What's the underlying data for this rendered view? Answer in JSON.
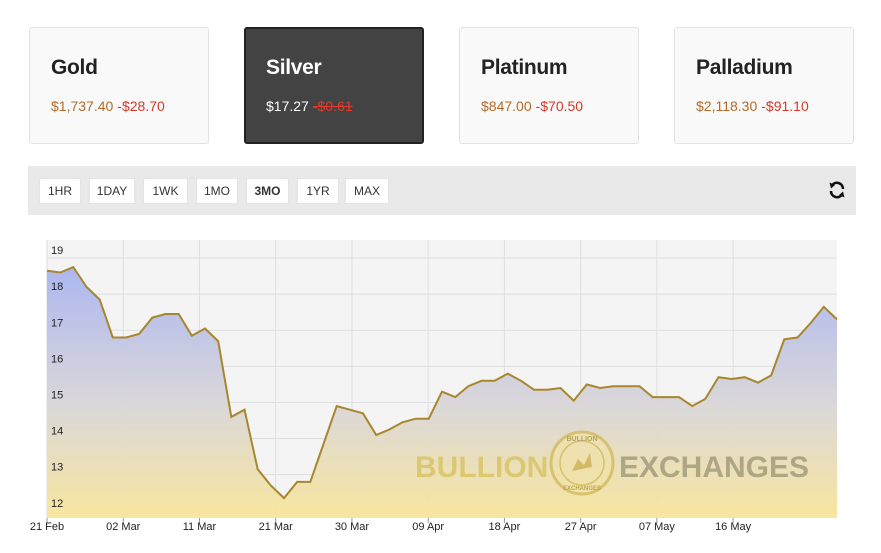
{
  "metals": [
    {
      "name": "Gold",
      "price": "$1,737.40",
      "change": "-$28.70",
      "active": false
    },
    {
      "name": "Silver",
      "price": "$17.27",
      "change": "-$0.61",
      "active": true
    },
    {
      "name": "Platinum",
      "price": "$847.00",
      "change": "-$70.50",
      "active": false
    },
    {
      "name": "Palladium",
      "price": "$2,118.30",
      "change": "-$91.10",
      "active": false
    }
  ],
  "ranges": [
    "1HR",
    "1DAY",
    "1WK",
    "1MO",
    "3MO",
    "1YR",
    "MAX"
  ],
  "selected_range": "3MO",
  "refresh_icon": "refresh-icon",
  "watermark": {
    "left": "BULLION",
    "right": "EXCHANGES",
    "badge_top": "BULLION",
    "badge_bottom": "EXCHANGES"
  },
  "colors": {
    "line": "#a8862c",
    "active_card": "#434343",
    "price": "#b56a2a",
    "change": "#d23a2a"
  },
  "chart_data": {
    "type": "area",
    "ylim": [
      11.8,
      19.5
    ],
    "yticks": [
      "12",
      "13",
      "14",
      "15",
      "16",
      "17",
      "18",
      "19"
    ],
    "xticks": [
      "21 Feb",
      "02 Mar",
      "11 Mar",
      "21 Mar",
      "30 Mar",
      "09 Apr",
      "18 Apr",
      "27 Apr",
      "07 May",
      "16 May"
    ],
    "grid": true,
    "series": [
      {
        "values": [
          18.65,
          18.6,
          18.75,
          18.2,
          17.85,
          16.8,
          16.8,
          16.9,
          17.35,
          17.45,
          17.45,
          16.85,
          17.05,
          16.7,
          14.6,
          14.8,
          13.15,
          12.7,
          12.35,
          12.8,
          12.8,
          13.85,
          14.9,
          14.8,
          14.7,
          14.1,
          14.25,
          14.45,
          14.55,
          14.55,
          15.3,
          15.15,
          15.45,
          15.6,
          15.6,
          15.8,
          15.6,
          15.35,
          15.35,
          15.4,
          15.05,
          15.5,
          15.4,
          15.45,
          15.45,
          15.45,
          15.15,
          15.15,
          15.15,
          14.9,
          15.1,
          15.7,
          15.65,
          15.7,
          15.55,
          15.75,
          16.75,
          16.8,
          17.2,
          17.65,
          17.3
        ]
      }
    ]
  }
}
